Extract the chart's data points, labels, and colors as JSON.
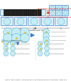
{
  "title": "Figure 8 - Measurement of nucleation frequencies by recording and counting crystals in each drop",
  "bg_color": "#ffffff",
  "drop_color": "#c5ecf5",
  "drop_edge": "#60b8d0",
  "crystal_yellow": "#f0d020",
  "crystal_edge": "#b09000",
  "chip_color": "#3a7ec8",
  "chip_bg": "#ddeef8",
  "arrow_color": "#444444",
  "red_color": "#dd2222",
  "grey_line": "#aaaaaa",
  "dark_chip": "#1a1a1a",
  "chip_inner": "#3a3a3a"
}
